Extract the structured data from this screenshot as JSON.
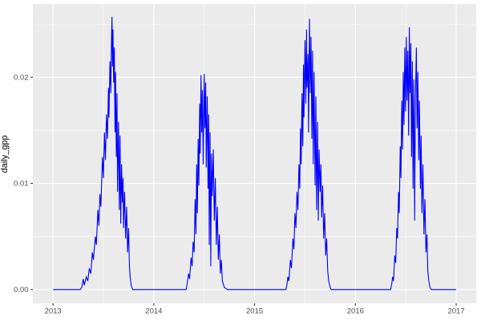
{
  "chart_data": {
    "type": "line",
    "title": "",
    "xlabel": "",
    "ylabel": "daily_gpp",
    "legend": "none",
    "grid": "major+minor",
    "x_range": [
      2012.8,
      2017.2
    ],
    "y_range": [
      -0.0013,
      0.0269
    ],
    "x_ticks": {
      "values": [
        2013,
        2014,
        2015,
        2016,
        2017
      ],
      "labels": [
        "2013",
        "2014",
        "2015",
        "2016",
        "2017"
      ]
    },
    "x_minor": [
      2013.5,
      2014.5,
      2015.5,
      2016.5
    ],
    "y_ticks": {
      "values": [
        0,
        0.01,
        0.02
      ],
      "labels": [
        "0.00",
        "0.01",
        "0.02"
      ]
    },
    "y_minor": [
      0.005,
      0.015,
      0.025
    ],
    "series": [
      {
        "name": "daily_gpp",
        "color": "#0000FF",
        "points": [
          [
            2013.0,
            0
          ],
          [
            2013.27,
            0
          ],
          [
            2013.285,
            0.0002
          ],
          [
            2013.3,
            0.001
          ],
          [
            2013.31,
            0.0004
          ],
          [
            2013.33,
            0.0012
          ],
          [
            2013.345,
            0.0008
          ],
          [
            2013.36,
            0.002
          ],
          [
            2013.375,
            0.0015
          ],
          [
            2013.39,
            0.0035
          ],
          [
            2013.4,
            0.0028
          ],
          [
            2013.42,
            0.005
          ],
          [
            2013.43,
            0.0042
          ],
          [
            2013.445,
            0.0075
          ],
          [
            2013.455,
            0.006
          ],
          [
            2013.465,
            0.009
          ],
          [
            2013.475,
            0.0078
          ],
          [
            2013.49,
            0.0125
          ],
          [
            2013.5,
            0.0105
          ],
          [
            2013.51,
            0.0148
          ],
          [
            2013.52,
            0.0122
          ],
          [
            2013.53,
            0.0165
          ],
          [
            2013.54,
            0.0142
          ],
          [
            2013.55,
            0.019
          ],
          [
            2013.555,
            0.0162
          ],
          [
            2013.565,
            0.0215
          ],
          [
            2013.573,
            0.0185
          ],
          [
            2013.58,
            0.0235
          ],
          [
            2013.585,
            0.0257
          ],
          [
            2013.59,
            0.021
          ],
          [
            2013.595,
            0.0245
          ],
          [
            2013.602,
            0.0195
          ],
          [
            2013.608,
            0.0228
          ],
          [
            2013.615,
            0.0148
          ],
          [
            2013.62,
            0.0205
          ],
          [
            2013.628,
            0.0125
          ],
          [
            2013.635,
            0.0185
          ],
          [
            2013.64,
            0.0092
          ],
          [
            2013.65,
            0.0158
          ],
          [
            2013.658,
            0.0075
          ],
          [
            2013.665,
            0.0145
          ],
          [
            2013.672,
            0.0062
          ],
          [
            2013.68,
            0.0118
          ],
          [
            2013.688,
            0.0082
          ],
          [
            2013.695,
            0.0105
          ],
          [
            2013.7,
            0.0058
          ],
          [
            2013.71,
            0.0092
          ],
          [
            2013.72,
            0.0048
          ],
          [
            2013.73,
            0.0078
          ],
          [
            2013.74,
            0.0035
          ],
          [
            2013.75,
            0.0058
          ],
          [
            2013.758,
            0.0022
          ],
          [
            2013.765,
            0.0012
          ],
          [
            2013.775,
            0.0004
          ],
          [
            2013.79,
            0
          ],
          [
            2014.32,
            0
          ],
          [
            2014.33,
            0.0005
          ],
          [
            2014.345,
            0.0015
          ],
          [
            2014.355,
            0.001
          ],
          [
            2014.37,
            0.003
          ],
          [
            2014.38,
            0.0022
          ],
          [
            2014.39,
            0.0045
          ],
          [
            2014.4,
            0.0035
          ],
          [
            2014.41,
            0.0085
          ],
          [
            2014.418,
            0.0052
          ],
          [
            2014.425,
            0.0118
          ],
          [
            2014.432,
            0.0072
          ],
          [
            2014.44,
            0.0142
          ],
          [
            2014.447,
            0.0098
          ],
          [
            2014.455,
            0.0175
          ],
          [
            2014.46,
            0.0128
          ],
          [
            2014.468,
            0.0202
          ],
          [
            2014.475,
            0.0148
          ],
          [
            2014.482,
            0.0188
          ],
          [
            2014.49,
            0.0118
          ],
          [
            2014.5,
            0.0203
          ],
          [
            2014.507,
            0.0152
          ],
          [
            2014.515,
            0.0195
          ],
          [
            2014.52,
            0.0115
          ],
          [
            2014.53,
            0.0182
          ],
          [
            2014.538,
            0.0095
          ],
          [
            2014.545,
            0.0165
          ],
          [
            2014.55,
            0.0042
          ],
          [
            2014.558,
            0.0148
          ],
          [
            2014.565,
            0.0022
          ],
          [
            2014.572,
            0.0128
          ],
          [
            2014.58,
            0.0088
          ],
          [
            2014.59,
            0.0132
          ],
          [
            2014.6,
            0.0065
          ],
          [
            2014.61,
            0.0105
          ],
          [
            2014.62,
            0.0042
          ],
          [
            2014.63,
            0.0078
          ],
          [
            2014.64,
            0.0028
          ],
          [
            2014.65,
            0.0052
          ],
          [
            2014.66,
            0.0015
          ],
          [
            2014.67,
            0.0028
          ],
          [
            2014.68,
            0.0008
          ],
          [
            2014.7,
            0.0002
          ],
          [
            2014.73,
            0
          ],
          [
            2015.31,
            0
          ],
          [
            2015.32,
            0.0004
          ],
          [
            2015.33,
            0.0012
          ],
          [
            2015.34,
            0.0008
          ],
          [
            2015.355,
            0.0028
          ],
          [
            2015.365,
            0.002
          ],
          [
            2015.38,
            0.0048
          ],
          [
            2015.39,
            0.0038
          ],
          [
            2015.4,
            0.0072
          ],
          [
            2015.41,
            0.0058
          ],
          [
            2015.42,
            0.0092
          ],
          [
            2015.43,
            0.0075
          ],
          [
            2015.44,
            0.0118
          ],
          [
            2015.448,
            0.0095
          ],
          [
            2015.455,
            0.0152
          ],
          [
            2015.462,
            0.0118
          ],
          [
            2015.47,
            0.0185
          ],
          [
            2015.478,
            0.0135
          ],
          [
            2015.485,
            0.0212
          ],
          [
            2015.49,
            0.0162
          ],
          [
            2015.5,
            0.0235
          ],
          [
            2015.508,
            0.0175
          ],
          [
            2015.515,
            0.0245
          ],
          [
            2015.52,
            0.019
          ],
          [
            2015.53,
            0.0222
          ],
          [
            2015.535,
            0.0148
          ],
          [
            2015.545,
            0.0255
          ],
          [
            2015.552,
            0.0185
          ],
          [
            2015.56,
            0.0238
          ],
          [
            2015.568,
            0.0142
          ],
          [
            2015.575,
            0.0225
          ],
          [
            2015.582,
            0.0118
          ],
          [
            2015.59,
            0.0205
          ],
          [
            2015.6,
            0.0098
          ],
          [
            2015.608,
            0.0182
          ],
          [
            2015.615,
            0.0075
          ],
          [
            2015.625,
            0.0158
          ],
          [
            2015.632,
            0.0065
          ],
          [
            2015.64,
            0.0132
          ],
          [
            2015.65,
            0.0092
          ],
          [
            2015.658,
            0.0118
          ],
          [
            2015.665,
            0.0068
          ],
          [
            2015.675,
            0.0098
          ],
          [
            2015.685,
            0.0048
          ],
          [
            2015.695,
            0.0072
          ],
          [
            2015.705,
            0.0032
          ],
          [
            2015.715,
            0.0048
          ],
          [
            2015.725,
            0.0018
          ],
          [
            2015.735,
            0.0008
          ],
          [
            2015.75,
            0.0002
          ],
          [
            2015.76,
            0
          ],
          [
            2016.35,
            0
          ],
          [
            2016.36,
            0.0005
          ],
          [
            2016.37,
            0.0012
          ],
          [
            2016.378,
            0.0008
          ],
          [
            2016.39,
            0.0032
          ],
          [
            2016.4,
            0.0025
          ],
          [
            2016.41,
            0.0058
          ],
          [
            2016.418,
            0.0048
          ],
          [
            2016.428,
            0.0092
          ],
          [
            2016.435,
            0.0072
          ],
          [
            2016.445,
            0.0135
          ],
          [
            2016.452,
            0.0105
          ],
          [
            2016.46,
            0.0178
          ],
          [
            2016.468,
            0.0132
          ],
          [
            2016.475,
            0.0205
          ],
          [
            2016.482,
            0.0155
          ],
          [
            2016.49,
            0.0228
          ],
          [
            2016.497,
            0.0168
          ],
          [
            2016.505,
            0.0238
          ],
          [
            2016.512,
            0.0178
          ],
          [
            2016.52,
            0.0225
          ],
          [
            2016.528,
            0.0145
          ],
          [
            2016.535,
            0.0247
          ],
          [
            2016.542,
            0.0185
          ],
          [
            2016.55,
            0.0232
          ],
          [
            2016.557,
            0.0125
          ],
          [
            2016.565,
            0.0215
          ],
          [
            2016.572,
            0.0095
          ],
          [
            2016.58,
            0.0198
          ],
          [
            2016.588,
            0.0065
          ],
          [
            2016.595,
            0.0178
          ],
          [
            2016.605,
            0.0228
          ],
          [
            2016.612,
            0.0152
          ],
          [
            2016.62,
            0.0205
          ],
          [
            2016.628,
            0.0122
          ],
          [
            2016.635,
            0.0178
          ],
          [
            2016.645,
            0.0095
          ],
          [
            2016.652,
            0.0145
          ],
          [
            2016.66,
            0.0072
          ],
          [
            2016.67,
            0.0118
          ],
          [
            2016.68,
            0.0052
          ],
          [
            2016.69,
            0.0085
          ],
          [
            2016.7,
            0.0035
          ],
          [
            2016.71,
            0.0052
          ],
          [
            2016.718,
            0.0018
          ],
          [
            2016.728,
            0.0008
          ],
          [
            2016.74,
            0.0002
          ],
          [
            2016.755,
            0
          ],
          [
            2017.0,
            0
          ]
        ]
      }
    ],
    "colors": {
      "panel_background": "#EBEBEB",
      "grid_major": "#FFFFFF",
      "grid_minor": "#FFFFFF",
      "line": "#0000FF",
      "tick_mark": "#333333",
      "tick_label": "#4D4D4D",
      "axis_title": "#000000",
      "figure_background": "#FFFFFF"
    }
  }
}
